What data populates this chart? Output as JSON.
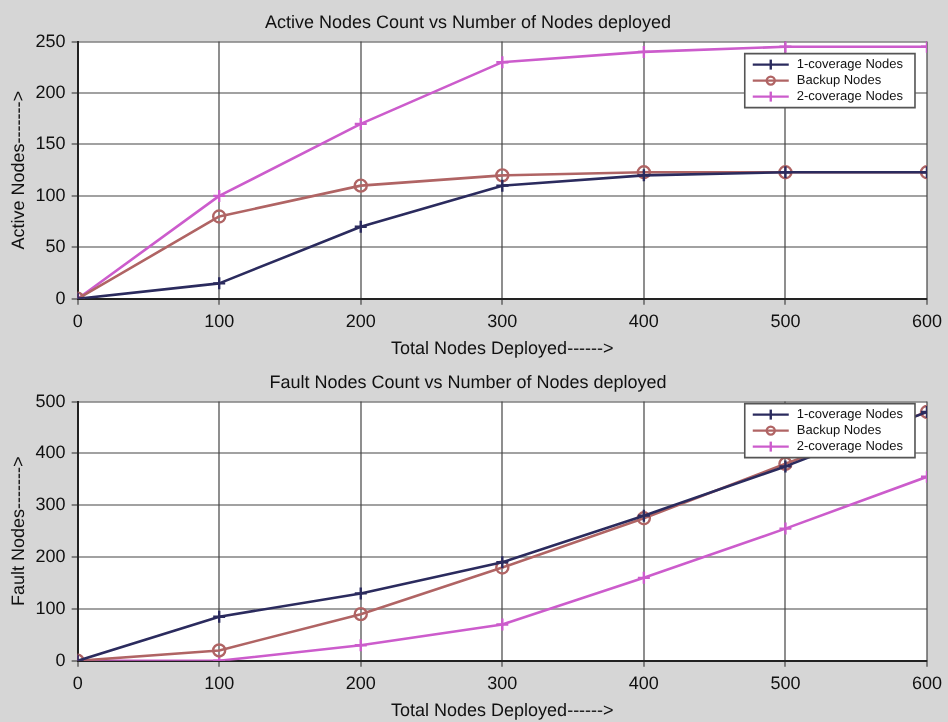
{
  "chart_data": [
    {
      "type": "line",
      "title": "Active Nodes Count vs Number of Nodes deployed",
      "xlabel": "Total Nodes Deployed------>",
      "ylabel": "Active Nodes------->",
      "x": [
        0,
        100,
        200,
        300,
        400,
        500,
        600
      ],
      "series": [
        {
          "name": "1-coverage Nodes",
          "color": "#2b2b5e",
          "marker": "cross",
          "values": [
            0,
            15,
            70,
            110,
            120,
            123,
            123
          ]
        },
        {
          "name": "Backup Nodes",
          "color": "#b06464",
          "marker": "circle",
          "values": [
            0,
            80,
            110,
            120,
            123,
            123,
            123
          ]
        },
        {
          "name": "2-coverage Nodes",
          "color": "#cc5ccc",
          "marker": "cross",
          "values": [
            0,
            100,
            170,
            230,
            240,
            245,
            245
          ]
        }
      ],
      "xlim": [
        0,
        600
      ],
      "xticks": [
        0,
        100,
        200,
        300,
        400,
        500,
        600
      ],
      "ylim": [
        0,
        250
      ],
      "yticks": [
        0,
        50,
        100,
        150,
        200,
        250
      ],
      "grid": true,
      "legend": "top right",
      "line_style": "solid"
    },
    {
      "type": "line",
      "title": "Fault Nodes Count vs Number of Nodes deployed",
      "xlabel": "Total Nodes Deployed------>",
      "ylabel": "Fault Nodes------->",
      "x": [
        0,
        100,
        200,
        300,
        400,
        500,
        600
      ],
      "series": [
        {
          "name": "1-coverage Nodes",
          "color": "#2b2b5e",
          "marker": "cross",
          "values": [
            0,
            85,
            130,
            190,
            280,
            375,
            480
          ]
        },
        {
          "name": "Backup Nodes",
          "color": "#b06464",
          "marker": "circle",
          "values": [
            0,
            20,
            90,
            180,
            275,
            380,
            480
          ]
        },
        {
          "name": "2-coverage Nodes",
          "color": "#cc5ccc",
          "marker": "cross",
          "values": [
            0,
            0,
            30,
            70,
            160,
            255,
            355
          ]
        }
      ],
      "xlim": [
        0,
        600
      ],
      "xticks": [
        0,
        100,
        200,
        300,
        400,
        500,
        600
      ],
      "ylim": [
        0,
        500
      ],
      "yticks": [
        0,
        100,
        200,
        300,
        400,
        500
      ],
      "grid": true,
      "legend": "top right",
      "line_style": "solid"
    }
  ]
}
